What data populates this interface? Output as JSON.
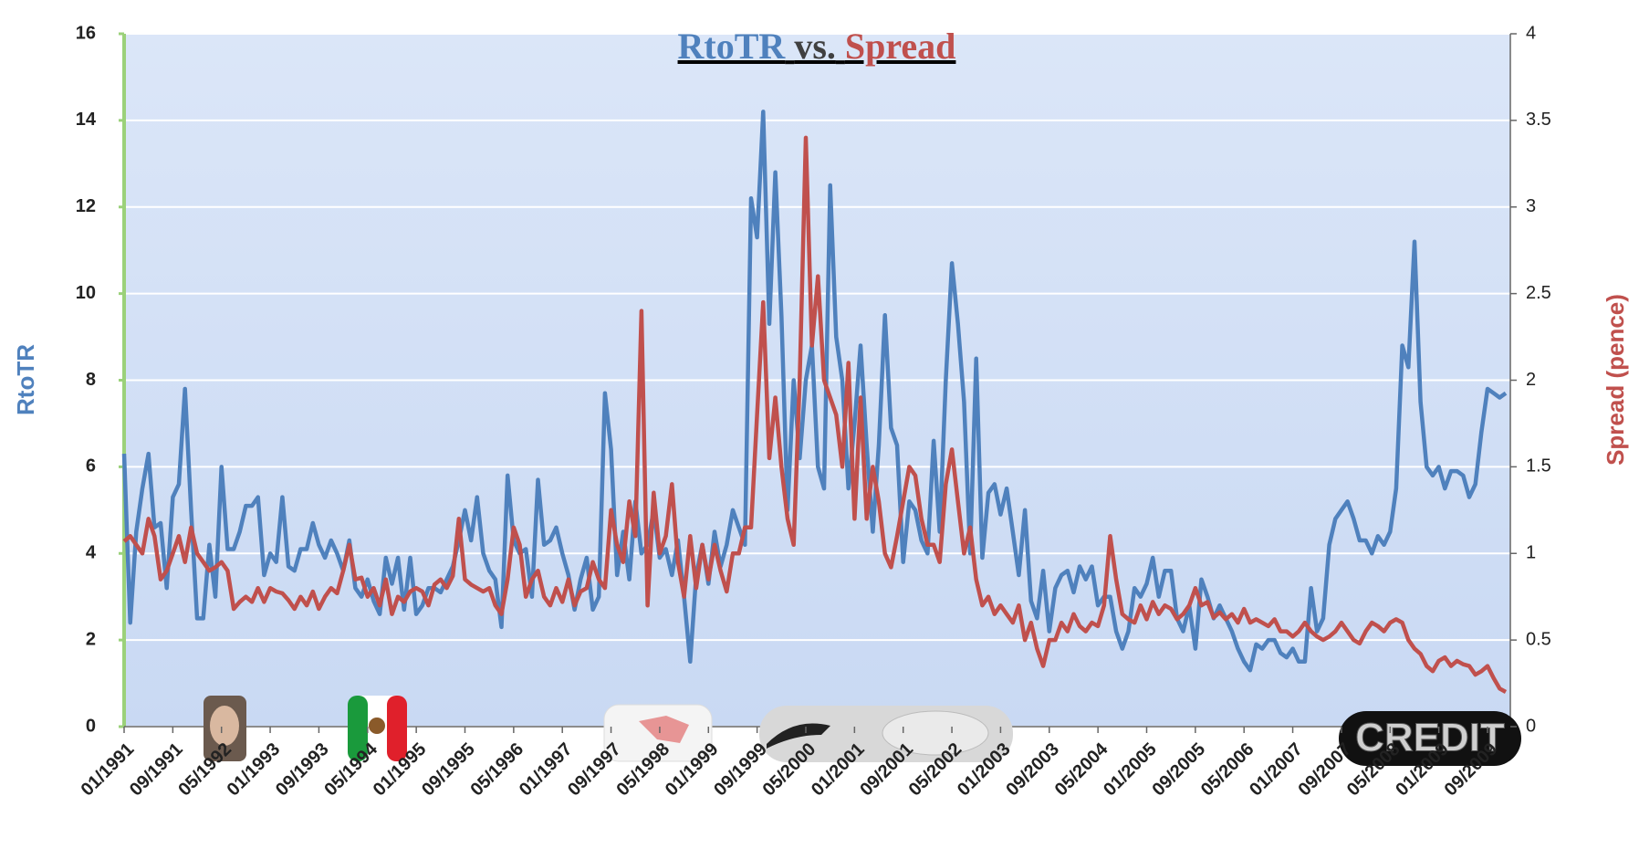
{
  "chart_data": {
    "type": "line",
    "title_parts": [
      {
        "text": "RtoTR",
        "color": "#4f81bd"
      },
      {
        "text": "vs.",
        "color": "#404040"
      },
      {
        "text": "Spread",
        "color": "#c0504d"
      }
    ],
    "ylabel": "RtoTR",
    "y2label": "Spread (pence)",
    "annotations": [
      "CREDIT"
    ],
    "categories": [
      "01/1991",
      null,
      null,
      null,
      null,
      null,
      null,
      null,
      "09/1991",
      null,
      null,
      null,
      null,
      null,
      null,
      null,
      "05/1992",
      null,
      null,
      null,
      null,
      null,
      null,
      null,
      "01/1993",
      null,
      null,
      null,
      null,
      null,
      null,
      null,
      "09/1993",
      null,
      null,
      null,
      null,
      null,
      null,
      null,
      "05/1994",
      null,
      null,
      null,
      null,
      null,
      null,
      null,
      "01/1995",
      null,
      null,
      null,
      null,
      null,
      null,
      null,
      "09/1995",
      null,
      null,
      null,
      null,
      null,
      null,
      null,
      "05/1996",
      null,
      null,
      null,
      null,
      null,
      null,
      null,
      "01/1997",
      null,
      null,
      null,
      null,
      null,
      null,
      null,
      "09/1997",
      null,
      null,
      null,
      null,
      null,
      null,
      null,
      "05/1998",
      null,
      null,
      null,
      null,
      null,
      null,
      null,
      "01/1999",
      null,
      null,
      null,
      null,
      null,
      null,
      null,
      "09/1999",
      null,
      null,
      null,
      null,
      null,
      null,
      null,
      "05/2000",
      null,
      null,
      null,
      null,
      null,
      null,
      null,
      "01/2001",
      null,
      null,
      null,
      null,
      null,
      null,
      null,
      "09/2001",
      null,
      null,
      null,
      null,
      null,
      null,
      null,
      "05/2002",
      null,
      null,
      null,
      null,
      null,
      null,
      null,
      "01/2003",
      null,
      null,
      null,
      null,
      null,
      null,
      null,
      "09/2003",
      null,
      null,
      null,
      null,
      null,
      null,
      null,
      "05/2004",
      null,
      null,
      null,
      null,
      null,
      null,
      null,
      "01/2005",
      null,
      null,
      null,
      null,
      null,
      null,
      null,
      "09/2005",
      null,
      null,
      null,
      null,
      null,
      null,
      null,
      "05/2006",
      null,
      null,
      null,
      null,
      null,
      null,
      null,
      "01/2007",
      null,
      null,
      null,
      null,
      null,
      null,
      null,
      "09/2007",
      null,
      null,
      null,
      null,
      null,
      null,
      null,
      "05/2008",
      null,
      null,
      null,
      null,
      null,
      null,
      null,
      "01/2009",
      null,
      null,
      null,
      null,
      null,
      null,
      null,
      "09/2009",
      null,
      null,
      null
    ],
    "series": [
      {
        "name": "RtoTR",
        "color": "#4f81bd",
        "axis": "y",
        "values": [
          6.3,
          2.4,
          4.5,
          5.5,
          6.3,
          4.6,
          4.7,
          3.2,
          5.3,
          5.6,
          7.8,
          5.0,
          2.5,
          2.5,
          4.2,
          3.0,
          6.0,
          4.1,
          4.1,
          4.5,
          5.1,
          5.1,
          5.3,
          3.5,
          4.0,
          3.8,
          5.3,
          3.7,
          3.6,
          4.1,
          4.1,
          4.7,
          4.2,
          3.9,
          4.3,
          4.0,
          3.6,
          4.3,
          3.2,
          3.0,
          3.4,
          2.9,
          2.6,
          3.9,
          3.3,
          3.9,
          2.7,
          3.9,
          2.6,
          2.8,
          3.2,
          3.2,
          3.1,
          3.4,
          3.7,
          4.3,
          5.0,
          4.3,
          5.3,
          4.0,
          3.6,
          3.4,
          2.3,
          5.8,
          4.3,
          4.0,
          4.1,
          3.0,
          5.7,
          4.2,
          4.3,
          4.6,
          4.0,
          3.5,
          2.7,
          3.4,
          3.9,
          2.7,
          3.0,
          7.7,
          6.4,
          3.5,
          4.5,
          3.4,
          5.2,
          4.0,
          4.2,
          5.0,
          3.9,
          4.1,
          3.5,
          4.3,
          3.0,
          1.5,
          3.5,
          4.2,
          3.3,
          4.5,
          3.7,
          4.2,
          5.0,
          4.6,
          4.2,
          12.2,
          11.3,
          14.2,
          9.3,
          12.8,
          9.5,
          5.0,
          8.0,
          6.2,
          8.0,
          8.8,
          6.0,
          5.5,
          12.5,
          9.0,
          8.0,
          5.5,
          7.0,
          8.8,
          6.5,
          4.5,
          6.5,
          9.5,
          6.9,
          6.5,
          3.8,
          5.2,
          5.0,
          4.3,
          4.0,
          6.6,
          4.5,
          8.0,
          10.7,
          9.3,
          7.5,
          4.0,
          8.5,
          3.9,
          5.4,
          5.6,
          4.9,
          5.5,
          4.5,
          3.5,
          5.0,
          2.9,
          2.5,
          3.6,
          2.2,
          3.2,
          3.5,
          3.6,
          3.1,
          3.7,
          3.4,
          3.7,
          2.8,
          3.0,
          3.0,
          2.2,
          1.8,
          2.2,
          3.2,
          3.0,
          3.3,
          3.9,
          3.0,
          3.6,
          3.6,
          2.5,
          2.2,
          2.8,
          1.8,
          3.4,
          3.0,
          2.5,
          2.8,
          2.5,
          2.2,
          1.8,
          1.5,
          1.3,
          1.9,
          1.8,
          2.0,
          2.0,
          1.7,
          1.6,
          1.8,
          1.5,
          1.5,
          3.2,
          2.2,
          2.5,
          4.2,
          4.8,
          5.0,
          5.2,
          4.8,
          4.3,
          4.3,
          4.0,
          4.4,
          4.2,
          4.5,
          5.5,
          8.8,
          8.3,
          11.2,
          7.5,
          6.0,
          5.8,
          6.0,
          5.5,
          5.9,
          5.9,
          5.8,
          5.3,
          5.6,
          6.8,
          7.8,
          7.7,
          7.6,
          7.7
        ]
      },
      {
        "name": "Spread",
        "color": "#c0504d",
        "axis": "y2",
        "values": [
          1.07,
          1.1,
          1.05,
          1.0,
          1.2,
          1.1,
          0.85,
          0.9,
          1.0,
          1.1,
          0.95,
          1.15,
          1.0,
          0.95,
          0.9,
          0.92,
          0.95,
          0.9,
          0.68,
          0.72,
          0.75,
          0.72,
          0.8,
          0.72,
          0.8,
          0.78,
          0.77,
          0.73,
          0.68,
          0.75,
          0.7,
          0.78,
          0.68,
          0.75,
          0.8,
          0.77,
          0.9,
          1.05,
          0.85,
          0.86,
          0.75,
          0.8,
          0.7,
          0.85,
          0.65,
          0.75,
          0.72,
          0.78,
          0.8,
          0.78,
          0.7,
          0.82,
          0.85,
          0.8,
          0.87,
          1.2,
          0.85,
          0.82,
          0.8,
          0.78,
          0.8,
          0.7,
          0.65,
          0.85,
          1.15,
          1.05,
          0.75,
          0.85,
          0.9,
          0.75,
          0.7,
          0.8,
          0.72,
          0.85,
          0.7,
          0.78,
          0.8,
          0.95,
          0.85,
          0.8,
          1.25,
          1.05,
          0.95,
          1.3,
          1.1,
          2.4,
          0.7,
          1.35,
          1.0,
          1.1,
          1.4,
          0.95,
          0.75,
          1.1,
          0.8,
          1.05,
          0.85,
          1.05,
          0.9,
          0.78,
          1.0,
          1.0,
          1.15,
          1.15,
          1.8,
          2.45,
          1.55,
          1.9,
          1.5,
          1.2,
          1.05,
          2.0,
          3.4,
          2.2,
          2.6,
          2.0,
          1.9,
          1.8,
          1.5,
          2.1,
          1.2,
          1.9,
          1.2,
          1.5,
          1.3,
          1.0,
          0.92,
          1.1,
          1.3,
          1.5,
          1.45,
          1.2,
          1.05,
          1.05,
          0.95,
          1.4,
          1.6,
          1.3,
          1.0,
          1.15,
          0.85,
          0.7,
          0.75,
          0.65,
          0.7,
          0.65,
          0.6,
          0.7,
          0.5,
          0.6,
          0.45,
          0.35,
          0.5,
          0.5,
          0.6,
          0.55,
          0.65,
          0.58,
          0.55,
          0.6,
          0.58,
          0.7,
          1.1,
          0.85,
          0.65,
          0.62,
          0.6,
          0.7,
          0.62,
          0.72,
          0.65,
          0.7,
          0.68,
          0.62,
          0.65,
          0.7,
          0.8,
          0.7,
          0.72,
          0.63,
          0.66,
          0.62,
          0.65,
          0.6,
          0.68,
          0.6,
          0.62,
          0.6,
          0.58,
          0.62,
          0.55,
          0.55,
          0.52,
          0.55,
          0.6,
          0.55,
          0.52,
          0.5,
          0.52,
          0.55,
          0.6,
          0.55,
          0.5,
          0.48,
          0.55,
          0.6,
          0.58,
          0.55,
          0.6,
          0.62,
          0.6,
          0.5,
          0.45,
          0.42,
          0.35,
          0.32,
          0.38,
          0.4,
          0.35,
          0.38,
          0.36,
          0.35,
          0.3,
          0.32,
          0.35,
          0.28,
          0.22,
          0.2
        ]
      }
    ],
    "ylim": [
      0,
      16
    ],
    "yticks": [
      0,
      2,
      4,
      6,
      8,
      10,
      12,
      14,
      16
    ],
    "y2lim": [
      0,
      4
    ],
    "y2ticks": [
      0,
      0.5,
      1,
      1.5,
      2,
      2.5,
      3,
      3.5,
      4
    ],
    "grid": true
  }
}
